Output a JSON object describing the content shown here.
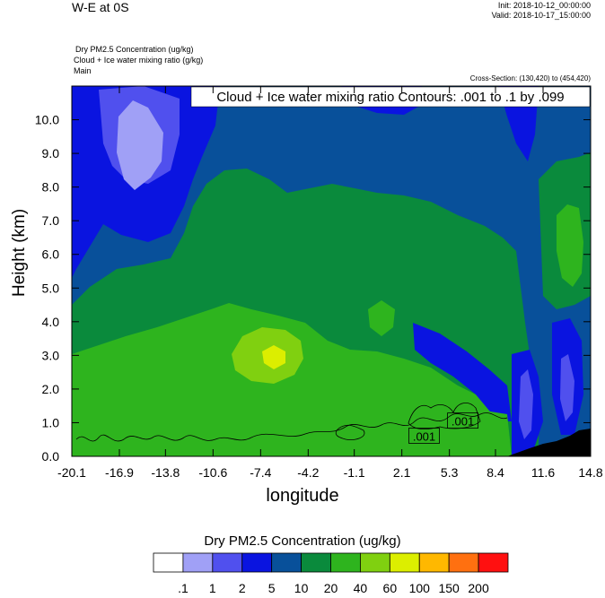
{
  "header": {
    "title": "W-E at 0S",
    "init": "Init: 2018-10-12_00:00:00",
    "valid": "Valid: 2018-10-17_15:00:00",
    "field_desc": [
      "Dry PM2.5 Concentration   (ug/kg)",
      "Cloud + Ice water mixing ratio   (g/kg)",
      "Main"
    ],
    "cross_section": "Cross-Section: (130,420) to (454,420)",
    "contour_info": "Cloud + Ice water mixing ratio Contours: .001 to .1 by .099"
  },
  "chart_data": {
    "type": "heatmap",
    "title": "W-E at 0S",
    "xlabel": "longitude",
    "ylabel": "Height (km)",
    "xlim": [
      -20.1,
      14.8
    ],
    "ylim": [
      0.0,
      11.0
    ],
    "x_ticks": [
      -20.1,
      -16.9,
      -13.8,
      -10.6,
      -7.4,
      -4.2,
      -1.1,
      2.1,
      5.3,
      8.4,
      11.6,
      14.8
    ],
    "x_tick_labels": [
      "-20.1",
      "-16.9",
      "-13.8",
      "-10.6",
      "-7.4",
      "-4.2",
      "-1.1",
      "2.1",
      "5.3",
      "8.4",
      "11.6",
      "14.8"
    ],
    "y_ticks": [
      0,
      1,
      2,
      3,
      4,
      5,
      6,
      7,
      8,
      9,
      10
    ],
    "y_tick_labels": [
      "0.0",
      "1.0",
      "2.0",
      "3.0",
      "4.0",
      "5.0",
      "6.0",
      "7.0",
      "8.0",
      "9.0",
      "10.0"
    ],
    "fill_field": "Dry PM2.5 Concentration (ug/kg)",
    "contour_field": "Cloud + Ice water mixing ratio (g/kg)",
    "contour_labels": [
      {
        "text": ".001",
        "x": 3.6,
        "y": 0.6
      },
      {
        "text": ".001",
        "x": 6.2,
        "y": 1.05
      }
    ],
    "colorbar": {
      "title": "Dry PM2.5 Concentration  (ug/kg)",
      "levels": [
        ".1",
        "1",
        "2",
        "5",
        "10",
        "20",
        "40",
        "60",
        "100",
        "150",
        "200"
      ],
      "colors": [
        "#ffffff",
        "#a0a0f6",
        "#5050ee",
        "#0a14e0",
        "#08509a",
        "#0a8a3c",
        "#2eb41e",
        "#80d010",
        "#dcee00",
        "#ffb800",
        "#ff7010",
        "#ff1010"
      ]
    },
    "palette": {
      "light_blue": "#a0a0f6",
      "medium_blue": "#5050ee",
      "blue": "#0a14e0",
      "dark_blue": "#08509a",
      "dark_green": "#0a8a3c",
      "green": "#2eb41e",
      "yellow_green": "#80d010",
      "yellow": "#dcee00",
      "terrain": "#000000"
    }
  }
}
